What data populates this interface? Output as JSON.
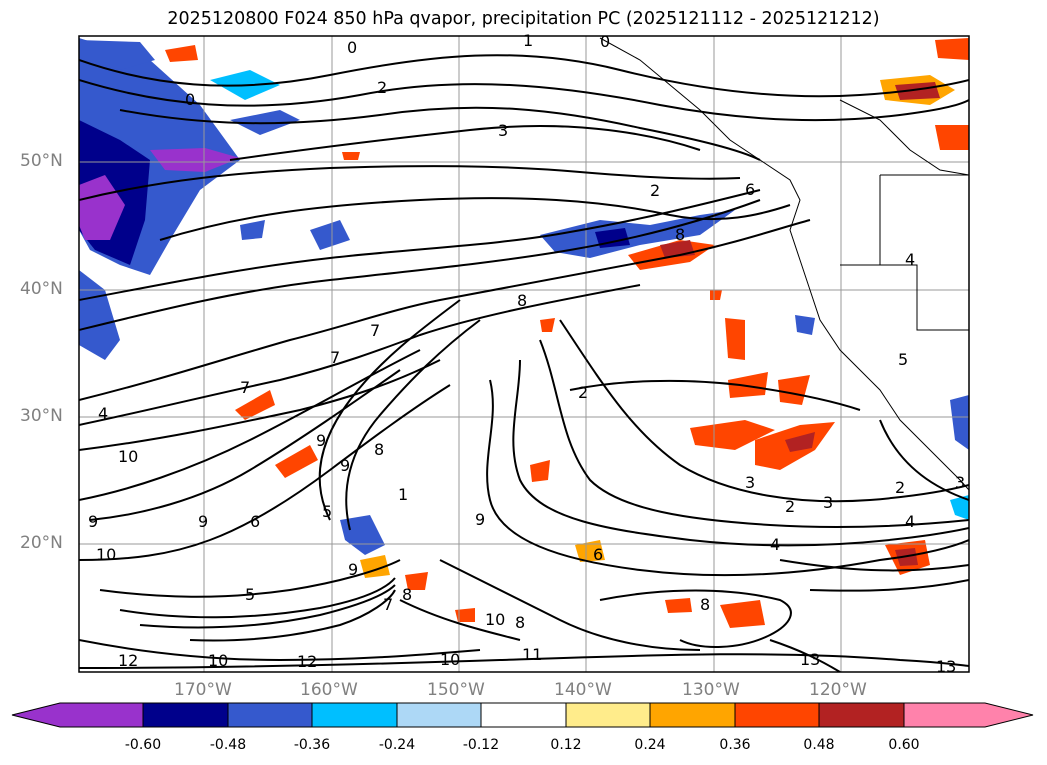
{
  "title": "2025120800 F024 850 hPa qvapor, precipitation PC (2025121112 - 2025121212)",
  "axes": {
    "lat_labels": [
      "50°N",
      "40°N",
      "30°N",
      "20°N"
    ],
    "lon_labels": [
      "170°W",
      "160°W",
      "150°W",
      "140°W",
      "130°W",
      "120°W"
    ]
  },
  "contour_labels": [
    "0",
    "1",
    "0",
    "2",
    "3",
    "0",
    "2",
    "4",
    "6",
    "8",
    "8",
    "7",
    "7",
    "7",
    "4",
    "10",
    "9",
    "9",
    "8",
    "6",
    "5",
    "9",
    "9",
    "10",
    "9",
    "8",
    "7",
    "5",
    "12",
    "10",
    "10",
    "10",
    "11",
    "12",
    "9",
    "8",
    "8",
    "13",
    "13",
    "2",
    "2",
    "3",
    "3",
    "2",
    "4",
    "4",
    "3",
    "6",
    "1",
    "5"
  ],
  "colorbar": {
    "ticks": [
      "-0.60",
      "-0.48",
      "-0.36",
      "-0.24",
      "-0.12",
      "0.12",
      "0.24",
      "0.36",
      "0.48",
      "0.60"
    ],
    "colors": {
      "lt_neg060": "#9932cc",
      "neg060_neg048": "#00008b",
      "neg048_neg036": "#3559cd",
      "neg036_neg024": "#00bfff",
      "neg024_neg012": "#add8f6",
      "neg012_012": "#ffffff",
      "p012_p024": "#ffec8b",
      "p024_p036": "#ffa500",
      "p036_p048": "#ff4500",
      "p048_p060": "#b22222",
      "gt_p060": "#ff82ab"
    }
  }
}
